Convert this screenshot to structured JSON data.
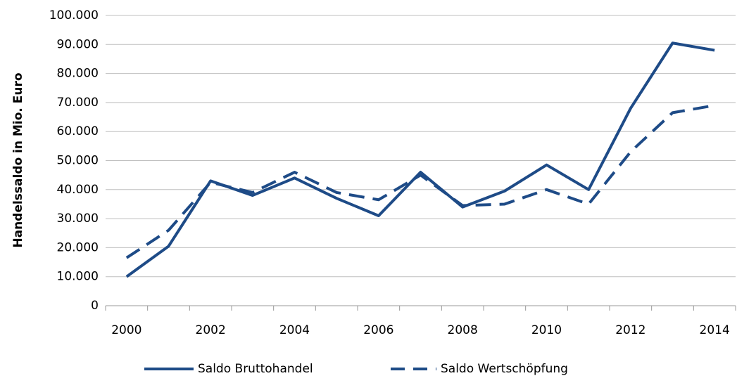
{
  "chart_data": {
    "type": "line",
    "ylabel": "Handelssaldo in Mio. Euro",
    "categories": [
      "2000",
      null,
      "2002",
      null,
      "2004",
      null,
      "2006",
      null,
      "2008",
      null,
      "2010",
      null,
      "2012",
      null,
      "2014"
    ],
    "series": [
      {
        "name": "Saldo Bruttohandel",
        "color": "#1e4b87",
        "dash": false,
        "values": [
          10000,
          20500,
          43000,
          38000,
          44000,
          37000,
          31000,
          46000,
          34000,
          39500,
          48500,
          40000,
          68000,
          90500,
          88000
        ]
      },
      {
        "name": "Saldo Wertschöpfung",
        "color": "#1e4b87",
        "dash": true,
        "values": [
          16500,
          26000,
          42500,
          39000,
          46000,
          39000,
          36500,
          45000,
          34500,
          35000,
          40000,
          35000,
          53000,
          66500,
          69000
        ]
      }
    ],
    "ylim": [
      0,
      100000
    ],
    "yticks": [
      0,
      {
        "value": 10000,
        "label": "10.000"
      },
      {
        "value": 20000,
        "label": "20.000"
      },
      {
        "value": 30000,
        "label": "30.000"
      },
      {
        "value": 40000,
        "label": "40.000"
      },
      {
        "value": 50000,
        "label": "50.000"
      },
      {
        "value": 60000,
        "label": "60.000"
      },
      {
        "value": 70000,
        "label": "70.000"
      },
      {
        "value": 80000,
        "label": "80.000"
      },
      {
        "value": 90000,
        "label": "90.000"
      },
      {
        "value": 100000,
        "label": "100.000"
      }
    ],
    "grid": true,
    "legend": "bottom"
  }
}
